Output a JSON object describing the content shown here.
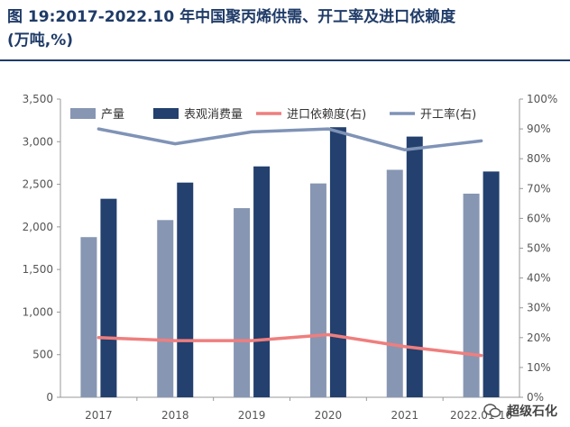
{
  "title": {
    "line1": "图 19:2017-2022.10 年中国聚丙烯供需、开工率及进口依赖度",
    "line2": "(万吨,%)"
  },
  "watermark": {
    "text": "超级石化",
    "icon": "wechat-icon"
  },
  "chart_data": {
    "type": "bar",
    "categories": [
      "2017",
      "2018",
      "2019",
      "2020",
      "2021",
      "2022.01-10"
    ],
    "series": [
      {
        "name": "产量",
        "kind": "bar",
        "axis": "left",
        "color": "#8796b3",
        "values": [
          1880,
          2080,
          2220,
          2510,
          2670,
          2390
        ]
      },
      {
        "name": "表观消费量",
        "kind": "bar",
        "axis": "left",
        "color": "#23406e",
        "values": [
          2330,
          2520,
          2710,
          3170,
          3060,
          2650
        ]
      },
      {
        "name": "进口依赖度(右)",
        "kind": "line",
        "axis": "right",
        "color": "#ef7e7e",
        "values": [
          20,
          19,
          19,
          21,
          17,
          14
        ]
      },
      {
        "name": "开工率(右)",
        "kind": "line",
        "axis": "right",
        "color": "#7f93b6",
        "values": [
          90,
          85,
          89,
          90,
          83,
          86
        ]
      }
    ],
    "y_left": {
      "min": 0,
      "max": 3500,
      "step": 500,
      "ticks": [
        "0",
        "500",
        "1,000",
        "1,500",
        "2,000",
        "2,500",
        "3,000",
        "3,500"
      ]
    },
    "y_right": {
      "min": 0,
      "max": 100,
      "step": 10,
      "ticks": [
        "0%",
        "10%",
        "20%",
        "30%",
        "40%",
        "50%",
        "60%",
        "70%",
        "80%",
        "90%",
        "100%"
      ]
    },
    "legend_position": "top",
    "grid": false
  }
}
